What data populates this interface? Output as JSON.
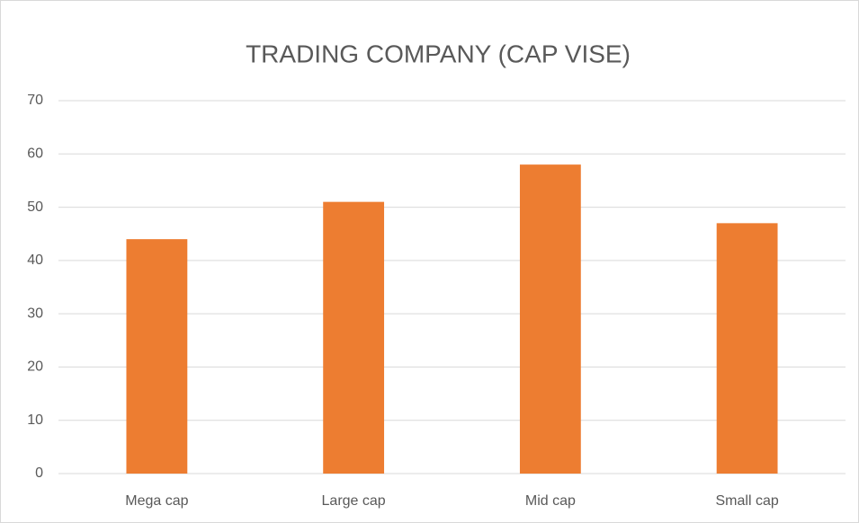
{
  "chart_data": {
    "type": "bar",
    "title": "TRADING COMPANY (CAP VISE)",
    "categories": [
      "Mega cap",
      "Large cap",
      "Mid cap",
      "Small cap"
    ],
    "values": [
      44,
      51,
      58,
      47
    ],
    "color": "#ed7d31",
    "ylim": [
      0,
      70
    ],
    "yticks": [
      0,
      10,
      20,
      30,
      40,
      50,
      60,
      70
    ],
    "grid": true
  }
}
